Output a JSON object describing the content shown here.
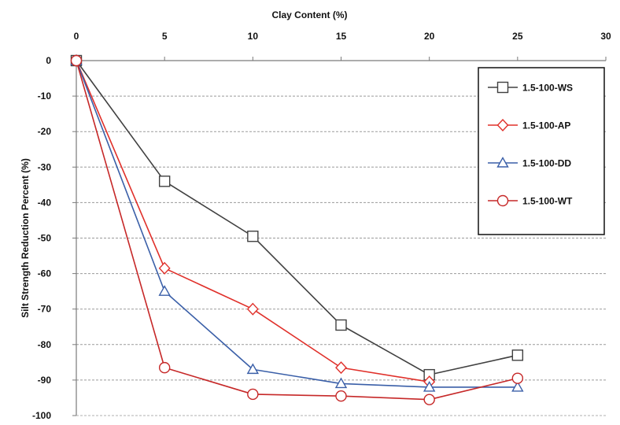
{
  "chart_data": {
    "type": "line",
    "title": "",
    "xlabel": "Clay Content (%)",
    "ylabel": "Silt Strength Reduction Percent (%)",
    "x_axis_position": "top",
    "xlim": [
      0,
      30
    ],
    "ylim": [
      -100,
      0
    ],
    "xticks": [
      0,
      5,
      10,
      15,
      20,
      25,
      30
    ],
    "yticks": [
      0,
      -10,
      -20,
      -30,
      -40,
      -50,
      -60,
      -70,
      -80,
      -90,
      -100
    ],
    "grid": "horizontal dashed",
    "legend_position": "top-right",
    "series": [
      {
        "name": "1.5-100-WS",
        "color": "#404040",
        "marker": "square",
        "points": [
          [
            0,
            0
          ],
          [
            5,
            -34
          ],
          [
            10,
            -49.5
          ],
          [
            15,
            -74.5
          ],
          [
            20,
            -88.5
          ],
          [
            25,
            -83
          ]
        ]
      },
      {
        "name": "1.5-100-AP",
        "color": "#e0302a",
        "marker": "diamond",
        "points": [
          [
            0,
            0
          ],
          [
            5,
            -58.5
          ],
          [
            10,
            -70
          ],
          [
            15,
            -86.5
          ],
          [
            20,
            -90.5
          ]
        ]
      },
      {
        "name": "1.5-100-DD",
        "color": "#3a5fa8",
        "marker": "triangle",
        "points": [
          [
            0,
            0
          ],
          [
            5,
            -65
          ],
          [
            10,
            -87
          ],
          [
            15,
            -91
          ],
          [
            20,
            -92
          ],
          [
            25,
            -92
          ]
        ]
      },
      {
        "name": "1.5-100-WT",
        "color": "#c62828",
        "marker": "circle",
        "points": [
          [
            0,
            0
          ],
          [
            5,
            -86.5
          ],
          [
            10,
            -94
          ],
          [
            15,
            -94.5
          ],
          [
            20,
            -95.5
          ],
          [
            25,
            -89.5
          ]
        ]
      }
    ]
  }
}
